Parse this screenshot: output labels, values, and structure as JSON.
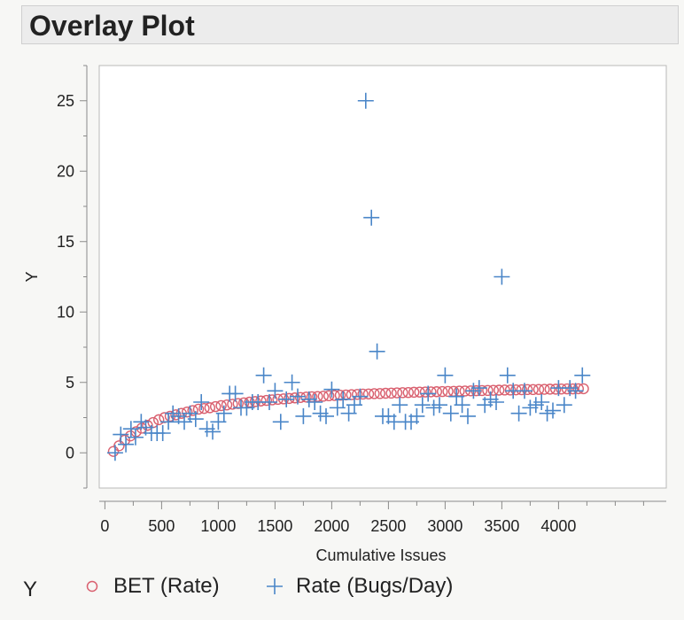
{
  "title": "Overlay Plot",
  "chart_data": {
    "type": "scatter",
    "xlabel": "Cumulative Issues",
    "ylabel": "Y",
    "xlim": [
      -50,
      4950
    ],
    "ylim": [
      -2.5,
      27.5
    ],
    "xticks": [
      0,
      500,
      1000,
      1500,
      2000,
      2500,
      3000,
      3500,
      4000
    ],
    "yticks": [
      0,
      5,
      10,
      15,
      20,
      25
    ],
    "grid": false,
    "legend_title": "Y",
    "legend_position": "bottom",
    "series": [
      {
        "name": "BET (Rate)",
        "marker": "circle",
        "color": "#d9606f",
        "x": [
          75,
          125,
          175,
          225,
          275,
          325,
          375,
          425,
          475,
          525,
          575,
          625,
          675,
          725,
          775,
          825,
          875,
          925,
          975,
          1025,
          1075,
          1125,
          1175,
          1225,
          1275,
          1325,
          1375,
          1425,
          1475,
          1525,
          1575,
          1625,
          1675,
          1725,
          1775,
          1825,
          1875,
          1925,
          1975,
          2025,
          2075,
          2125,
          2175,
          2225,
          2275,
          2325,
          2375,
          2425,
          2475,
          2525,
          2575,
          2625,
          2675,
          2725,
          2775,
          2825,
          2875,
          2925,
          2975,
          3025,
          3075,
          3125,
          3175,
          3225,
          3275,
          3325,
          3375,
          3425,
          3475,
          3525,
          3575,
          3625,
          3675,
          3725,
          3775,
          3825,
          3875,
          3925,
          3975,
          4025,
          4075,
          4125,
          4175,
          4220
        ],
        "y": [
          0.1,
          0.5,
          0.9,
          1.2,
          1.5,
          1.75,
          1.95,
          2.15,
          2.35,
          2.5,
          2.6,
          2.7,
          2.8,
          2.9,
          3.0,
          3.1,
          3.15,
          3.2,
          3.28,
          3.35,
          3.4,
          3.45,
          3.5,
          3.55,
          3.6,
          3.64,
          3.68,
          3.72,
          3.76,
          3.8,
          3.83,
          3.86,
          3.9,
          3.93,
          3.96,
          3.98,
          4.0,
          4.02,
          4.05,
          4.07,
          4.09,
          4.11,
          4.13,
          4.15,
          4.17,
          4.18,
          4.2,
          4.21,
          4.23,
          4.24,
          4.26,
          4.27,
          4.28,
          4.3,
          4.31,
          4.32,
          4.33,
          4.34,
          4.35,
          4.36,
          4.37,
          4.38,
          4.39,
          4.4,
          4.41,
          4.42,
          4.43,
          4.44,
          4.45,
          4.46,
          4.46,
          4.47,
          4.48,
          4.49,
          4.49,
          4.5,
          4.51,
          4.52,
          4.52,
          4.53,
          4.54,
          4.54,
          4.55,
          4.55
        ]
      },
      {
        "name": "Rate (Bugs/Day)",
        "marker": "plus",
        "color": "#4a86c8",
        "x": [
          90,
          140,
          185,
          230,
          270,
          320,
          360,
          410,
          460,
          510,
          560,
          600,
          650,
          700,
          750,
          800,
          850,
          900,
          950,
          1000,
          1050,
          1100,
          1150,
          1200,
          1250,
          1300,
          1350,
          1400,
          1450,
          1500,
          1550,
          1600,
          1650,
          1700,
          1750,
          1800,
          1850,
          1900,
          1950,
          2000,
          2050,
          2100,
          2150,
          2200,
          2250,
          2300,
          2350,
          2400,
          2450,
          2500,
          2550,
          2600,
          2650,
          2700,
          2750,
          2800,
          2850,
          2900,
          2950,
          3000,
          3050,
          3100,
          3150,
          3200,
          3250,
          3300,
          3350,
          3400,
          3450,
          3500,
          3550,
          3600,
          3650,
          3700,
          3750,
          3800,
          3850,
          3900,
          3950,
          4000,
          4050,
          4100,
          4150,
          4210
        ],
        "y": [
          0.0,
          1.3,
          0.6,
          1.7,
          1.1,
          2.2,
          1.8,
          1.4,
          1.4,
          1.4,
          2.2,
          2.8,
          2.6,
          2.2,
          2.8,
          2.4,
          3.6,
          1.7,
          1.5,
          2.2,
          2.8,
          4.2,
          4.2,
          3.2,
          3.2,
          3.6,
          3.6,
          5.5,
          3.6,
          4.4,
          2.2,
          3.8,
          5.0,
          4.0,
          2.6,
          3.8,
          3.6,
          2.8,
          2.6,
          4.5,
          3.2,
          3.8,
          2.8,
          3.4,
          4.0,
          25.0,
          16.7,
          7.2,
          2.6,
          2.6,
          2.2,
          3.4,
          2.2,
          2.2,
          2.6,
          3.4,
          4.2,
          3.2,
          3.4,
          5.5,
          2.8,
          4.0,
          3.4,
          2.6,
          4.4,
          4.6,
          3.4,
          3.8,
          3.6,
          12.5,
          5.5,
          4.4,
          2.8,
          4.4,
          3.2,
          3.4,
          3.6,
          2.8,
          3.0,
          4.6,
          3.4,
          4.6,
          4.4,
          5.5
        ]
      }
    ]
  }
}
